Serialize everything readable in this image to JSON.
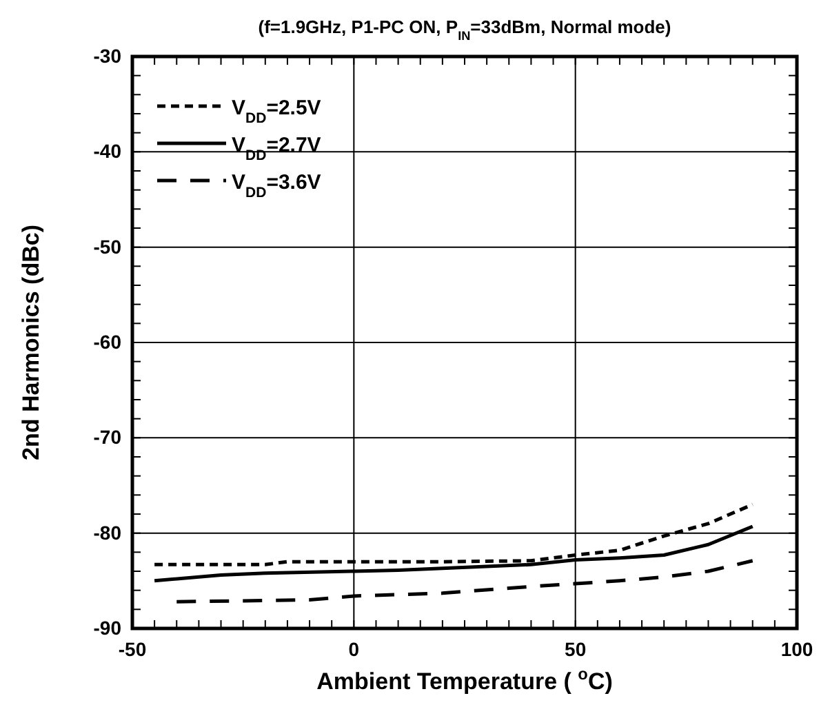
{
  "chart_data": {
    "type": "line",
    "title": "(f=1.9GHz, P1-PC ON, P$_{IN}$=33dBm, Normal mode)",
    "xlabel": "Ambient Temperature  ( $^{o}$C)",
    "ylabel": "2nd Harmonics  (dBc)",
    "xlim": [
      -50,
      100
    ],
    "xticks": [
      -50,
      0,
      50,
      100
    ],
    "ylim": [
      -90,
      -30
    ],
    "yticks": [
      -90,
      -80,
      -70,
      -60,
      -50,
      -40,
      -30
    ],
    "grid": true,
    "legend": "top left",
    "marker": "none",
    "series": [
      {
        "name": "V$_{DD}$=2.5V",
        "color": "#000000",
        "line_style": "dotted",
        "x": [
          -45,
          -20,
          -15,
          0,
          20,
          40,
          50,
          60,
          70,
          80,
          90
        ],
        "values": [
          -83.3,
          -83.3,
          -83.0,
          -83.0,
          -83.0,
          -82.9,
          -82.3,
          -81.8,
          -80.3,
          -79,
          -77
        ]
      },
      {
        "name": "V$_{DD}$=2.7V",
        "color": "#000000",
        "line_style": "solid",
        "x": [
          -45,
          -30,
          -20,
          0,
          10,
          20,
          40,
          50,
          60,
          70,
          80,
          90
        ],
        "values": [
          -85,
          -84.4,
          -84.2,
          -84,
          -83.9,
          -83.7,
          -83.3,
          -82.8,
          -82.6,
          -82.3,
          -81.2,
          -79.3
        ]
      },
      {
        "name": "V$_{DD}$=3.6V",
        "color": "#000000",
        "line_style": "dashed",
        "x": [
          -40,
          -10,
          0,
          20,
          40,
          50,
          60,
          70,
          80,
          90
        ],
        "values": [
          -87.2,
          -87,
          -86.6,
          -86.3,
          -85.6,
          -85.3,
          -85,
          -84.6,
          -84,
          -82.9
        ]
      }
    ]
  }
}
